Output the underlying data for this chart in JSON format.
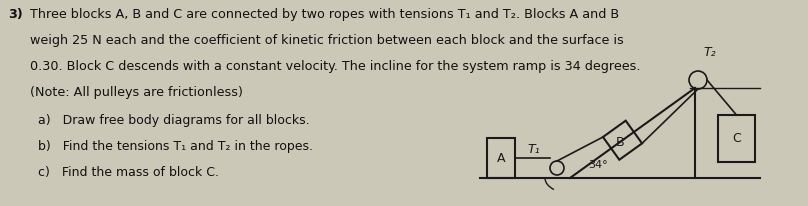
{
  "background_color": "#ccc8b8",
  "text_color": "#111111",
  "title_number": "3)",
  "line1": "Three blocks A, B and C are connected by two ropes with tensions T₁ and T₂. Blocks A and B",
  "line2": "weigh 25 N each and the coefficient of kinetic friction between each block and the surface is",
  "line3": "0.30. Block C descends with a constant velocity. The incline for the system ramp is 34 degrees.",
  "line4": "(Note: All pulleys are frictionless)",
  "line_a": "a)   Draw free body diagrams for all blocks.",
  "line_b": "b)   Find the tensions T₁ and T₂ in the ropes.",
  "line_c": "c)   Find the mass of block C.",
  "angle_label": "34°",
  "block_A_label": "A",
  "block_B_label": "B",
  "block_C_label": "C",
  "T1_label": "T₁",
  "T2_label": "T₂"
}
